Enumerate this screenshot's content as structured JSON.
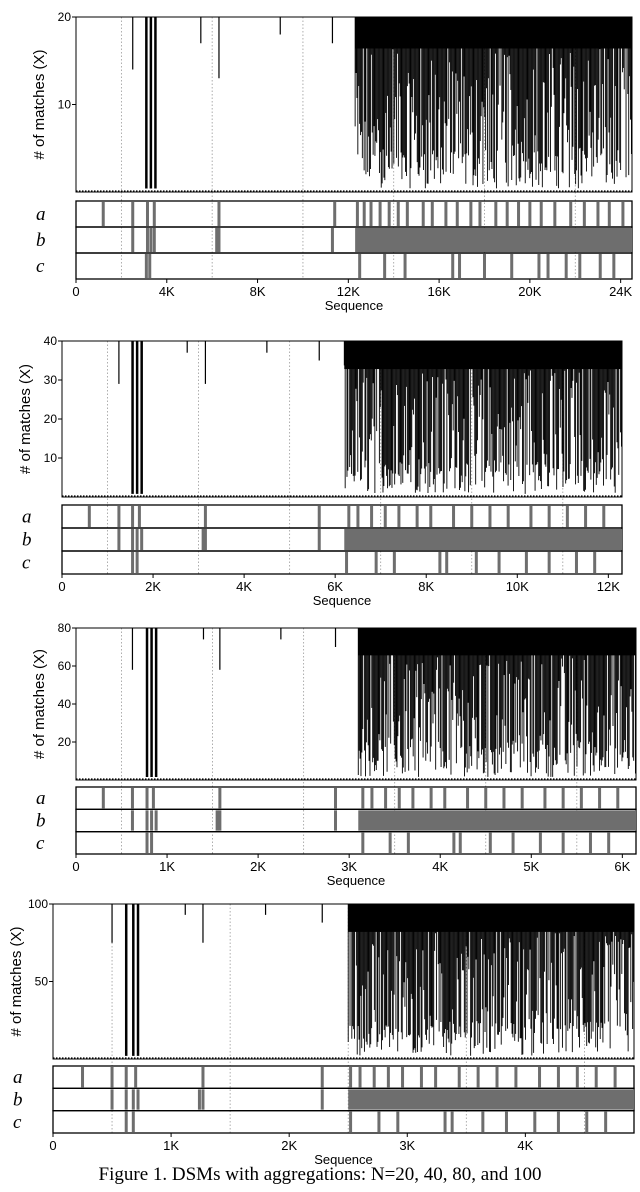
{
  "colors": {
    "ink": "#000000",
    "bar": "#6e6e6e",
    "grid": "#9a9a9a",
    "background": "#ffffff"
  },
  "caption": "Figure 1. DSMs with aggregations: N=20, 40, 80, and 100",
  "chart_data": [
    {
      "type": "area",
      "n": 20,
      "ylabel": "# of matches (X)",
      "xlabel": "Sequence",
      "ylim": [
        0,
        20
      ],
      "yticks": [
        10,
        20
      ],
      "xlim": [
        0,
        24500
      ],
      "xticks": [
        0,
        4000,
        8000,
        12000,
        16000,
        20000,
        24000
      ],
      "xtick_labels": [
        "0",
        "4K",
        "8K",
        "12K",
        "16K",
        "20K",
        "24K"
      ],
      "gridlines": [
        2000,
        6000,
        10000,
        14000,
        18000,
        22000
      ],
      "dense_region_start": 12300,
      "dense_region_min": 0.4,
      "dense_region_max": 20,
      "dips": [
        [
          2500,
          14
        ],
        [
          3100,
          0.4
        ],
        [
          3300,
          0.4
        ],
        [
          3500,
          0.4
        ],
        [
          5500,
          17
        ],
        [
          6300,
          13
        ],
        [
          9000,
          18
        ],
        [
          11300,
          17
        ]
      ],
      "rows": [
        {
          "name": "a",
          "marks": [
            1200,
            2500,
            3150,
            3450,
            6300,
            11400,
            12400,
            12700,
            13000,
            13400,
            13800,
            14200,
            14600,
            15300,
            15700,
            16300,
            16800,
            17400,
            17800,
            18500,
            19000,
            19500,
            20000,
            20500,
            21100,
            21800,
            22400,
            23000,
            23500,
            24100
          ]
        },
        {
          "name": "b",
          "marks": [
            2500,
            3150,
            3300,
            3450,
            6200,
            6300,
            11300
          ],
          "block": [
            12300,
            24500
          ]
        },
        {
          "name": "c",
          "marks": [
            3100,
            3250,
            12500,
            13600,
            14500,
            16600,
            16900,
            18000,
            19200,
            20400,
            20800,
            21600,
            22200,
            23100,
            23700
          ]
        }
      ]
    },
    {
      "type": "area",
      "n": 40,
      "ylabel": "# of matches (X)",
      "xlabel": "Sequence",
      "ylim": [
        0,
        40
      ],
      "yticks": [
        10,
        20,
        30,
        40
      ],
      "xlim": [
        0,
        12300
      ],
      "xticks": [
        0,
        2000,
        4000,
        6000,
        8000,
        10000,
        12000
      ],
      "xtick_labels": [
        "0",
        "2K",
        "4K",
        "6K",
        "8K",
        "10K",
        "12K"
      ],
      "gridlines": [
        1000,
        3000,
        5000,
        7000,
        9000,
        11000
      ],
      "dense_region_start": 6200,
      "dense_region_min": 0.8,
      "dense_region_max": 40,
      "dips": [
        [
          1250,
          29
        ],
        [
          1550,
          0.8
        ],
        [
          1650,
          0.8
        ],
        [
          1750,
          0.8
        ],
        [
          2750,
          37
        ],
        [
          3150,
          29
        ],
        [
          4500,
          37
        ],
        [
          5650,
          35
        ]
      ],
      "rows": [
        {
          "name": "a",
          "marks": [
            600,
            1250,
            1550,
            1700,
            3150,
            5650,
            6300,
            6500,
            6800,
            7100,
            7400,
            7800,
            8100,
            8600,
            9000,
            9400,
            9800,
            10300,
            10700,
            11100,
            11500,
            11900
          ]
        },
        {
          "name": "b",
          "marks": [
            1250,
            1550,
            1650,
            1750,
            3100,
            3150,
            5650
          ],
          "block": [
            6200,
            12300
          ]
        },
        {
          "name": "c",
          "marks": [
            1550,
            1650,
            6250,
            6900,
            7300,
            8300,
            8450,
            9100,
            9600,
            10200,
            10700,
            11300,
            11700
          ]
        }
      ]
    },
    {
      "type": "area",
      "n": 80,
      "ylabel": "# of matches (X)",
      "xlabel": "Sequence",
      "ylim": [
        0,
        80
      ],
      "yticks": [
        20,
        40,
        60,
        80
      ],
      "xlim": [
        0,
        6150
      ],
      "xticks": [
        0,
        1000,
        2000,
        3000,
        4000,
        5000,
        6000
      ],
      "xtick_labels": [
        "0",
        "1K",
        "2K",
        "3K",
        "4K",
        "5K",
        "6K"
      ],
      "gridlines": [
        500,
        1500,
        2500,
        3500,
        4500,
        5500
      ],
      "dense_region_start": 3100,
      "dense_region_min": 1.6,
      "dense_region_max": 80,
      "dips": [
        [
          620,
          58
        ],
        [
          780,
          1.6
        ],
        [
          830,
          1.6
        ],
        [
          880,
          1.6
        ],
        [
          1400,
          74
        ],
        [
          1580,
          58
        ],
        [
          2250,
          74
        ],
        [
          2850,
          70
        ]
      ],
      "rows": [
        {
          "name": "a",
          "marks": [
            300,
            620,
            780,
            850,
            1580,
            2850,
            3150,
            3250,
            3400,
            3550,
            3700,
            3900,
            4050,
            4300,
            4500,
            4700,
            4900,
            5150,
            5350,
            5550,
            5750,
            5950
          ]
        },
        {
          "name": "b",
          "marks": [
            620,
            780,
            830,
            880,
            1550,
            1580,
            2850
          ],
          "block": [
            3100,
            6150
          ]
        },
        {
          "name": "c",
          "marks": [
            780,
            830,
            3150,
            3450,
            3650,
            4150,
            4220,
            4550,
            4800,
            5100,
            5350,
            5650,
            5850
          ]
        }
      ]
    },
    {
      "type": "area",
      "n": 100,
      "ylabel": "# of matches (X)",
      "xlabel": "Sequence",
      "ylim": [
        0,
        100
      ],
      "yticks": [
        50,
        100
      ],
      "xlim": [
        0,
        4920
      ],
      "xticks": [
        0,
        1000,
        2000,
        3000,
        4000,
        5000
      ],
      "xtick_labels": [
        "0",
        "1K",
        "2K",
        "3K",
        "4K",
        "5K"
      ],
      "gridlines": [
        500,
        1500,
        2500,
        3500,
        4500
      ],
      "dense_region_start": 2500,
      "dense_region_min": 2,
      "dense_region_max": 100,
      "dips": [
        [
          500,
          75
        ],
        [
          620,
          2
        ],
        [
          680,
          2
        ],
        [
          720,
          2
        ],
        [
          1120,
          93
        ],
        [
          1270,
          75
        ],
        [
          1800,
          93
        ],
        [
          2280,
          88
        ]
      ],
      "rows": [
        {
          "name": "a",
          "marks": [
            250,
            500,
            620,
            700,
            1270,
            2280,
            2520,
            2600,
            2720,
            2840,
            2960,
            3120,
            3240,
            3440,
            3600,
            3760,
            3920,
            4120,
            4280,
            4440,
            4600,
            4760
          ]
        },
        {
          "name": "b",
          "marks": [
            500,
            620,
            680,
            720,
            1240,
            1270,
            2280
          ],
          "block": [
            2500,
            4920
          ]
        },
        {
          "name": "c",
          "marks": [
            620,
            680,
            2520,
            2760,
            2920,
            3320,
            3380,
            3640,
            3840,
            4080,
            4280,
            4520,
            4680
          ]
        }
      ]
    }
  ]
}
